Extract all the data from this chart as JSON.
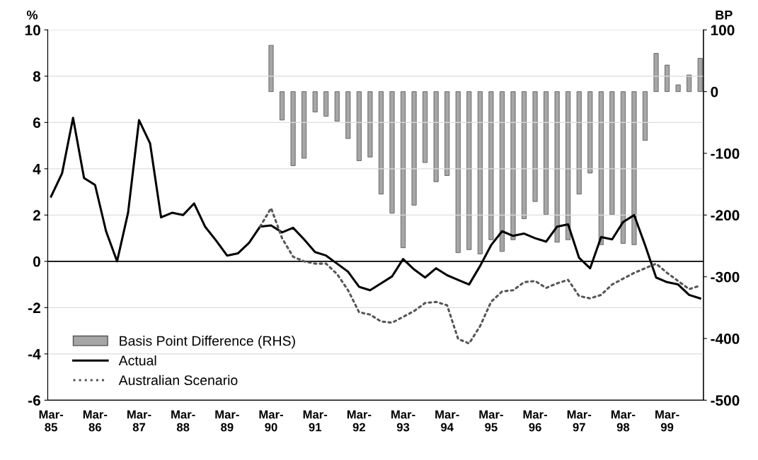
{
  "chart_data": {
    "type": "line",
    "ylabel": "%",
    "y2label": "BP",
    "categories": [
      "Mar-\n85",
      null,
      null,
      null,
      "Mar-\n86",
      null,
      null,
      null,
      "Mar-\n87",
      null,
      null,
      null,
      "Mar-\n88",
      null,
      null,
      null,
      "Mar-\n89",
      null,
      null,
      null,
      "Mar-\n90",
      null,
      null,
      null,
      "Mar-\n91",
      null,
      null,
      null,
      "Mar-\n92",
      null,
      null,
      null,
      "Mar-\n93",
      null,
      null,
      null,
      "Mar-\n94",
      null,
      null,
      null,
      "Mar-\n95",
      null,
      null,
      null,
      "Mar-\n96",
      null,
      null,
      null,
      "Mar-\n97",
      null,
      null,
      null,
      "Mar-\n98",
      null,
      null,
      null,
      "Mar-\n99",
      null,
      null,
      null
    ],
    "series": [
      {
        "name": "Basis Point Difference (RHS)",
        "type": "bar",
        "axis": "y2",
        "color": "#a6a6a6",
        "values": [
          null,
          null,
          null,
          null,
          null,
          null,
          null,
          null,
          null,
          null,
          null,
          null,
          null,
          null,
          null,
          null,
          null,
          null,
          null,
          null,
          75,
          -46,
          -120,
          -108,
          -33,
          -40,
          -48,
          -76,
          -112,
          -106,
          -166,
          -197,
          -253,
          -184,
          -115,
          -146,
          -136,
          -261,
          -256,
          -263,
          -240,
          -259,
          -240,
          -206,
          -178,
          -199,
          -244,
          -240,
          -166,
          -132,
          -248,
          -199,
          -246,
          -248,
          -79,
          62,
          43,
          11,
          27,
          54
        ]
      },
      {
        "name": "Actual",
        "color": "#000000",
        "line_style": "solid",
        "values": [
          2.8,
          3.8,
          6.2,
          3.6,
          3.3,
          1.3,
          0.0,
          2.1,
          6.1,
          5.1,
          1.9,
          2.1,
          2.0,
          2.5,
          1.5,
          0.9,
          0.25,
          0.35,
          0.8,
          1.5,
          1.55,
          1.25,
          1.45,
          0.95,
          0.4,
          0.25,
          -0.1,
          -0.45,
          -1.1,
          -1.25,
          -0.95,
          -0.65,
          0.1,
          -0.35,
          -0.7,
          -0.3,
          -0.6,
          -0.8,
          -1.0,
          -0.2,
          0.7,
          1.3,
          1.1,
          1.2,
          1.0,
          0.85,
          1.5,
          1.6,
          0.15,
          -0.3,
          1.05,
          0.95,
          1.7,
          2.0,
          0.7,
          -0.7,
          -0.9,
          -1.0,
          -1.45,
          -1.6
        ]
      },
      {
        "name": "Australian Scenario",
        "color": "#555555",
        "line_style": "dotted",
        "values": [
          null,
          null,
          null,
          null,
          null,
          null,
          null,
          null,
          null,
          null,
          null,
          null,
          null,
          null,
          null,
          null,
          null,
          null,
          null,
          1.5,
          2.3,
          1.0,
          0.2,
          0.0,
          -0.1,
          -0.1,
          -0.55,
          -1.25,
          -2.2,
          -2.3,
          -2.6,
          -2.65,
          -2.4,
          -2.15,
          -1.8,
          -1.75,
          -1.9,
          -3.35,
          -3.55,
          -2.8,
          -1.75,
          -1.3,
          -1.25,
          -0.9,
          -0.85,
          -1.15,
          -0.95,
          -0.8,
          -1.5,
          -1.6,
          -1.45,
          -1.0,
          -0.75,
          -0.5,
          -0.3,
          -0.1,
          -0.5,
          -0.85,
          -1.2,
          -1.05
        ]
      }
    ],
    "ylim": [
      -6,
      10
    ],
    "yticks": [
      -6,
      -4,
      -2,
      0,
      2,
      4,
      6,
      8,
      10
    ],
    "y2lim": [
      -500,
      100
    ],
    "y2ticks": [
      -500,
      -400,
      -300,
      -200,
      -100,
      0,
      100
    ],
    "ref_lines": [
      {
        "axis": "y",
        "value": 0,
        "color": "#000000"
      }
    ],
    "grid": "y",
    "legend": "bottom left"
  }
}
